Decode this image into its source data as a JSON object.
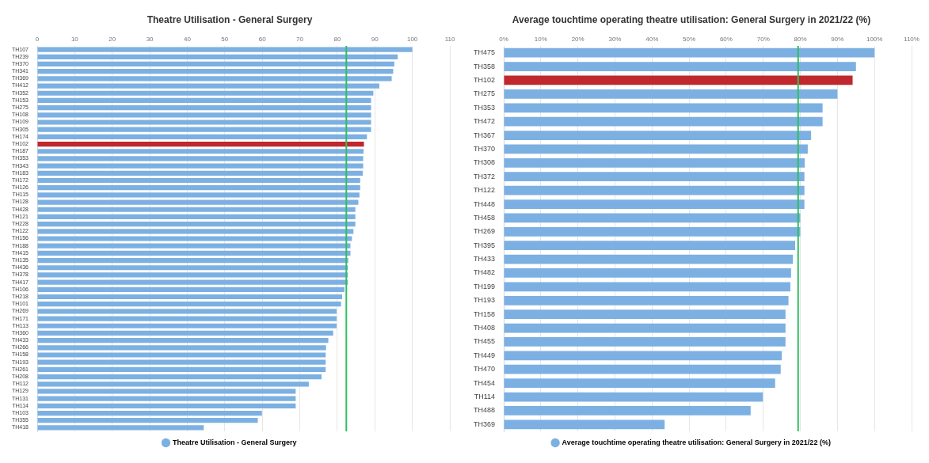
{
  "chart_data": [
    {
      "type": "bar",
      "orientation": "horizontal",
      "title": "Theatre Utilisation - General Surgery",
      "categories": [
        "TH107",
        "TH239",
        "TH370",
        "TH341",
        "TH369",
        "TH412",
        "TH352",
        "TH153",
        "TH275",
        "TH108",
        "TH109",
        "TH305",
        "TH174",
        "TH102",
        "TH187",
        "TH353",
        "TH343",
        "TH183",
        "TH172",
        "TH126",
        "TH115",
        "TH128",
        "TH428",
        "TH121",
        "TH228",
        "TH122",
        "TH156",
        "TH188",
        "TH415",
        "TH135",
        "TH436",
        "TH378",
        "TH417",
        "TH106",
        "TH218",
        "TH101",
        "TH269",
        "TH171",
        "TH113",
        "TH360",
        "TH433",
        "TH266",
        "TH158",
        "TH193",
        "TH261",
        "TH208",
        "TH112",
        "TH129",
        "TH131",
        "TH114",
        "TH103",
        "TH355",
        "TH418"
      ],
      "series": [
        {
          "name": "Theatre Utilisation - General Surgery",
          "color": "#7cb0e2",
          "colors": [
            "#7cb0e2",
            "#7cb0e2",
            "#7cb0e2",
            "#7cb0e2",
            "#7cb0e2",
            "#7cb0e2",
            "#7cb0e2",
            "#7cb0e2",
            "#7cb0e2",
            "#7cb0e2",
            "#7cb0e2",
            "#7cb0e2",
            "#7cb0e2",
            "#c0282d",
            "#7cb0e2",
            "#7cb0e2",
            "#7cb0e2",
            "#7cb0e2",
            "#7cb0e2",
            "#7cb0e2",
            "#7cb0e2",
            "#7cb0e2",
            "#7cb0e2",
            "#7cb0e2",
            "#7cb0e2",
            "#7cb0e2",
            "#7cb0e2",
            "#7cb0e2",
            "#7cb0e2",
            "#7cb0e2",
            "#7cb0e2",
            "#7cb0e2",
            "#7cb0e2",
            "#7cb0e2",
            "#7cb0e2",
            "#7cb0e2",
            "#7cb0e2",
            "#7cb0e2",
            "#7cb0e2",
            "#7cb0e2",
            "#7cb0e2",
            "#7cb0e2",
            "#7cb0e2",
            "#7cb0e2",
            "#7cb0e2",
            "#7cb0e2",
            "#7cb0e2",
            "#7cb0e2",
            "#7cb0e2",
            "#7cb0e2",
            "#7cb0e2",
            "#7cb0e2",
            "#7cb0e2"
          ],
          "values": [
            100,
            96.1,
            95.2,
            94.9,
            94.5,
            91.2,
            89.6,
            89,
            89,
            89,
            89,
            89,
            87.9,
            87.1,
            87,
            86.9,
            86.9,
            86.8,
            86.1,
            86.1,
            85.9,
            85.6,
            84.8,
            84.8,
            84.8,
            84.3,
            83.9,
            83.5,
            83.5,
            82.9,
            82.8,
            82.8,
            82.8,
            81.9,
            81.3,
            81,
            79.8,
            79.8,
            79.8,
            78.9,
            77.6,
            77,
            76.9,
            76.9,
            76.9,
            75.8,
            72.4,
            68.9,
            68.9,
            68.9,
            59.9,
            58.8,
            44.4
          ]
        }
      ],
      "xlim": [
        0,
        110
      ],
      "xticks": [
        0,
        10,
        20,
        30,
        40,
        50,
        60,
        70,
        80,
        90,
        100,
        110
      ],
      "ref_lines": [
        {
          "axis": "x",
          "value": 82.4,
          "color": "#2fbf5f"
        }
      ],
      "grid": "x",
      "legend": "bottom"
    },
    {
      "type": "bar",
      "orientation": "horizontal",
      "title": "Average touchtime operating theatre utilisation: General Surgery in 2021/22 (%)",
      "categories": [
        "TH475",
        "TH358",
        "TH102",
        "TH275",
        "TH353",
        "TH472",
        "TH367",
        "TH370",
        "TH308",
        "TH372",
        "TH122",
        "TH448",
        "TH458",
        "TH269",
        "TH395",
        "TH433",
        "TH482",
        "TH199",
        "TH193",
        "TH158",
        "TH408",
        "TH455",
        "TH449",
        "TH470",
        "TH454",
        "TH114",
        "TH488",
        "TH369"
      ],
      "series": [
        {
          "name": "Average touchtime operating theatre utilisation: General Surgery in 2021/22 (%)",
          "color": "#7cb0e2",
          "colors": [
            "#7cb0e2",
            "#7cb0e2",
            "#c0282d",
            "#7cb0e2",
            "#7cb0e2",
            "#7cb0e2",
            "#7cb0e2",
            "#7cb0e2",
            "#7cb0e2",
            "#7cb0e2",
            "#7cb0e2",
            "#7cb0e2",
            "#7cb0e2",
            "#7cb0e2",
            "#7cb0e2",
            "#7cb0e2",
            "#7cb0e2",
            "#7cb0e2",
            "#7cb0e2",
            "#7cb0e2",
            "#7cb0e2",
            "#7cb0e2",
            "#7cb0e2",
            "#7cb0e2",
            "#7cb0e2",
            "#7cb0e2",
            "#7cb0e2",
            "#7cb0e2"
          ],
          "values": [
            100,
            95,
            94.1,
            90,
            86,
            86,
            82.9,
            82,
            81.2,
            81.1,
            81.1,
            81.1,
            80,
            80,
            78.6,
            78,
            77.5,
            77.3,
            76.8,
            76,
            76,
            76,
            75,
            74.7,
            73.2,
            69.9,
            66.6,
            43.4
          ]
        }
      ],
      "xlim": [
        0,
        110
      ],
      "xticks": [
        {
          "value": 0,
          "label": "0%"
        },
        {
          "value": 10,
          "label": "10%"
        },
        {
          "value": 20,
          "label": "20%"
        },
        {
          "value": 30,
          "label": "30%"
        },
        {
          "value": 40,
          "label": "40%"
        },
        {
          "value": 50,
          "label": "50%"
        },
        {
          "value": 60,
          "label": "60%"
        },
        {
          "value": 70,
          "label": "70%"
        },
        {
          "value": 80,
          "label": "80%"
        },
        {
          "value": 90,
          "label": "90%"
        },
        {
          "value": 100,
          "label": "100%"
        },
        {
          "value": 110,
          "label": "110%"
        }
      ],
      "ref_lines": [
        {
          "axis": "x",
          "value": 79.4,
          "color": "#2fbf5f"
        }
      ],
      "grid": "x",
      "legend": "bottom"
    }
  ]
}
